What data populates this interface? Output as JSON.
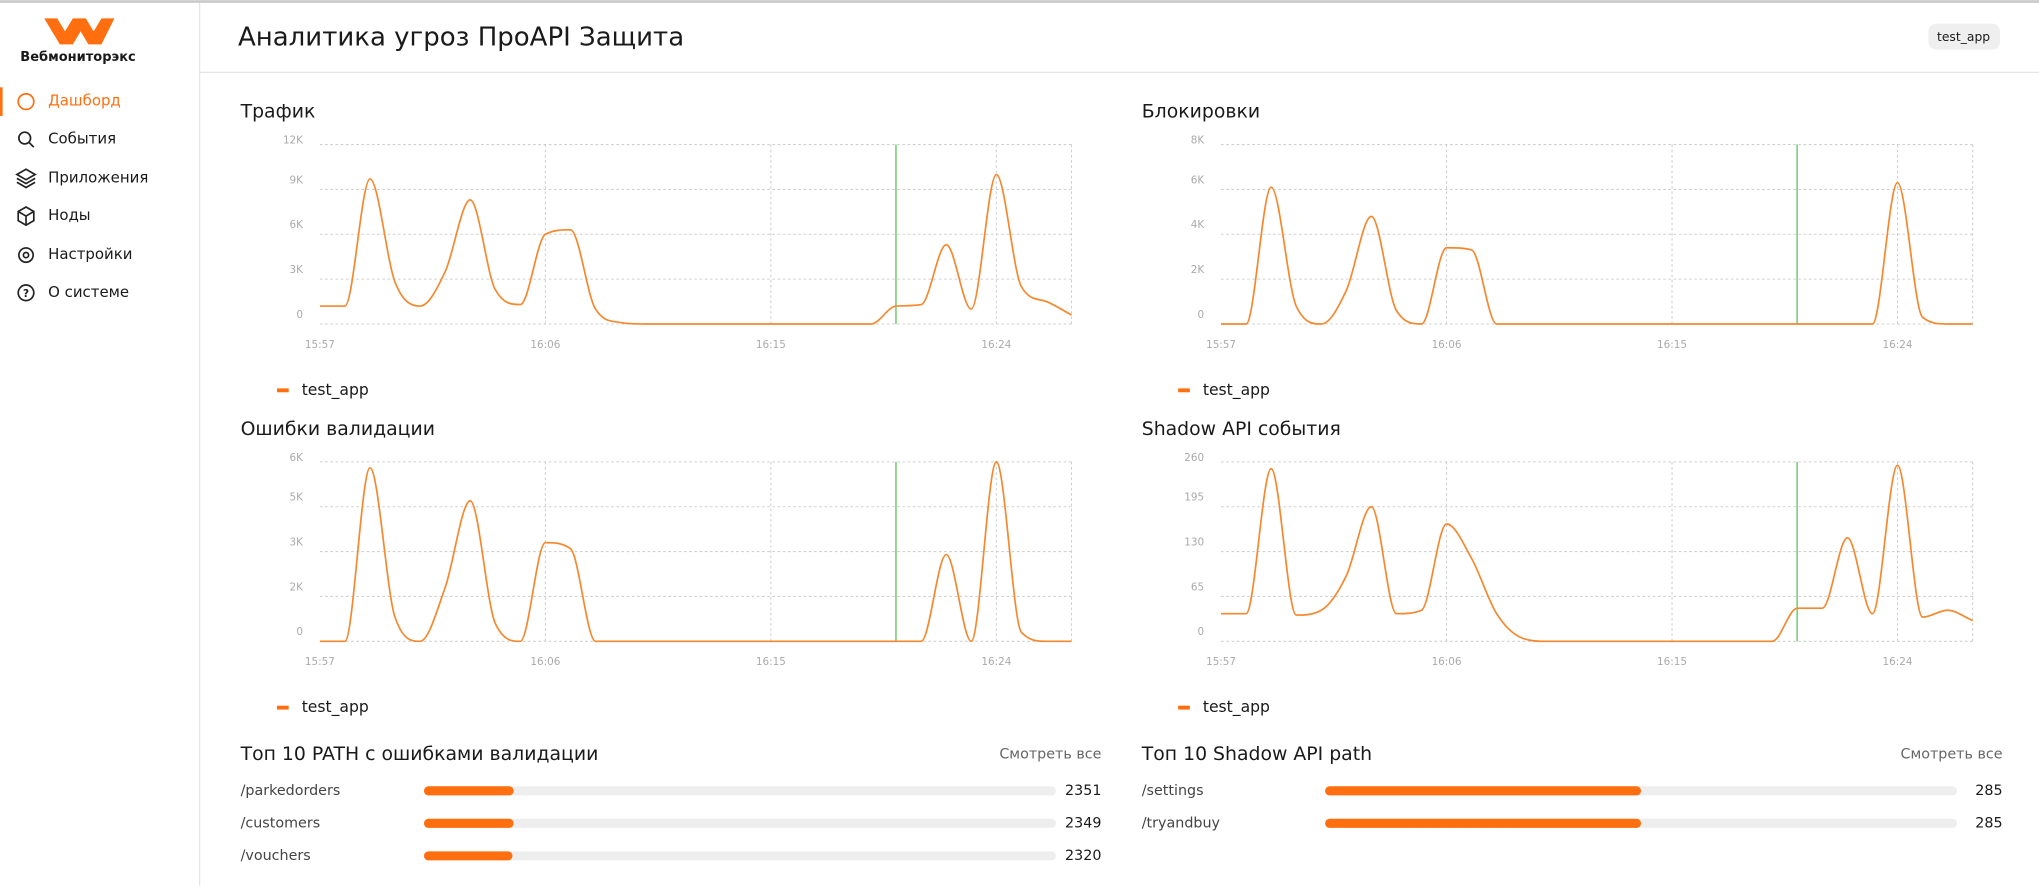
{
  "sidebar": {
    "brand": "Вебмониторэкс",
    "nav": [
      "Дашборд",
      "События",
      "Приложения",
      "Ноды",
      "Настройки",
      "О системе"
    ]
  },
  "header": {
    "title": "Аналитика угроз ПроAPI Защита",
    "badge": "test_app"
  },
  "charts": [
    {
      "type": "line",
      "title": "Трафик",
      "grid": true,
      "categories": [
        "15:57",
        null,
        null,
        null,
        null,
        null,
        null,
        null,
        null,
        "16:06",
        null,
        null,
        null,
        null,
        null,
        null,
        null,
        null,
        "16:15",
        null,
        null,
        null,
        null,
        null,
        null,
        null,
        null,
        "16:24",
        null,
        null,
        null
      ],
      "series": [
        {
          "name": "test_app",
          "color": "#f5882e",
          "values": [
            1200,
            1200,
            9700,
            2800,
            1200,
            3500,
            8300,
            2300,
            1300,
            6000,
            6300,
            1000,
            100,
            0,
            0,
            0,
            0,
            0,
            0,
            0,
            0,
            0,
            0,
            1200,
            1300,
            5300,
            1000,
            10000,
            2500,
            1500,
            600
          ]
        }
      ],
      "ylim": [
        0,
        12000
      ],
      "yticks": [
        0,
        {
          "value": 3000,
          "label": "3K"
        },
        {
          "value": 6000,
          "label": "6K"
        },
        {
          "value": 9000,
          "label": "9K"
        },
        {
          "value": 12000,
          "label": "12K"
        }
      ]
    },
    {
      "type": "line",
      "title": "Блокировки",
      "grid": true,
      "categories": [
        "15:57",
        null,
        null,
        null,
        null,
        null,
        null,
        null,
        null,
        "16:06",
        null,
        null,
        null,
        null,
        null,
        null,
        null,
        null,
        "16:15",
        null,
        null,
        null,
        null,
        null,
        null,
        null,
        null,
        "16:24",
        null,
        null,
        null
      ],
      "series": [
        {
          "name": "test_app",
          "color": "#f5882e",
          "values": [
            0,
            0,
            6100,
            800,
            0,
            1500,
            4800,
            600,
            0,
            3400,
            3300,
            0,
            0,
            0,
            0,
            0,
            0,
            0,
            0,
            0,
            0,
            0,
            0,
            0,
            0,
            0,
            0,
            6300,
            300,
            0,
            0
          ]
        }
      ],
      "ylim": [
        0,
        8000
      ],
      "yticks": [
        0,
        {
          "value": 2000,
          "label": "2K"
        },
        {
          "value": 4000,
          "label": "4K"
        },
        {
          "value": 6000,
          "label": "6K"
        },
        {
          "value": 8000,
          "label": "8K"
        }
      ]
    },
    {
      "type": "line",
      "title": "Ошибки валидации",
      "grid": true,
      "categories": [
        "15:57",
        null,
        null,
        null,
        null,
        null,
        null,
        null,
        null,
        "16:06",
        null,
        null,
        null,
        null,
        null,
        null,
        null,
        null,
        "16:15",
        null,
        null,
        null,
        null,
        null,
        null,
        null,
        null,
        "16:24",
        null,
        null,
        null
      ],
      "series": [
        {
          "name": "test_app",
          "color": "#f5882e",
          "values": [
            0,
            0,
            5800,
            800,
            0,
            1800,
            4700,
            600,
            0,
            3300,
            3100,
            0,
            0,
            0,
            0,
            0,
            0,
            0,
            0,
            0,
            0,
            0,
            0,
            0,
            0,
            2900,
            0,
            6000,
            300,
            0,
            0
          ]
        }
      ],
      "ylim": [
        0,
        6000
      ],
      "yticks": [
        0,
        {
          "value": 1500,
          "label": "2K"
        },
        {
          "value": 3000,
          "label": "3K"
        },
        {
          "value": 4500,
          "label": "5K"
        },
        {
          "value": 6000,
          "label": "6K"
        }
      ]
    },
    {
      "type": "line",
      "title": "Shadow API события",
      "grid": true,
      "categories": [
        "15:57",
        null,
        null,
        null,
        null,
        null,
        null,
        null,
        null,
        "16:06",
        null,
        null,
        null,
        null,
        null,
        null,
        null,
        null,
        "16:15",
        null,
        null,
        null,
        null,
        null,
        null,
        null,
        null,
        "16:24",
        null,
        null,
        null
      ],
      "series": [
        {
          "name": "test_app",
          "color": "#f5882e",
          "values": [
            40,
            40,
            250,
            38,
            45,
            95,
            195,
            40,
            45,
            170,
            120,
            40,
            5,
            0,
            0,
            0,
            0,
            0,
            0,
            0,
            0,
            0,
            0,
            48,
            48,
            150,
            40,
            255,
            35,
            45,
            30
          ]
        }
      ],
      "ylim": [
        0,
        260
      ],
      "yticks": [
        0,
        65,
        130,
        195,
        260
      ]
    }
  ],
  "lists": [
    {
      "title": "Топ 10 PATH с ошибками валидации",
      "link": "Смотреть все",
      "color": "#ff6f0f",
      "xlim": [
        0,
        16550
      ],
      "rows": [
        {
          "path": "/parkedorders",
          "value": 2351
        },
        {
          "path": "/customers",
          "value": 2349
        },
        {
          "path": "/vouchers",
          "value": 2320
        }
      ]
    },
    {
      "title": "Топ 10 Shadow API path",
      "link": "Смотреть все",
      "color": "#ff6f0f",
      "xlim": [
        0,
        570
      ],
      "rows": [
        {
          "path": "/settings",
          "value": 285
        },
        {
          "path": "/tryandbuy",
          "value": 285
        }
      ]
    }
  ]
}
